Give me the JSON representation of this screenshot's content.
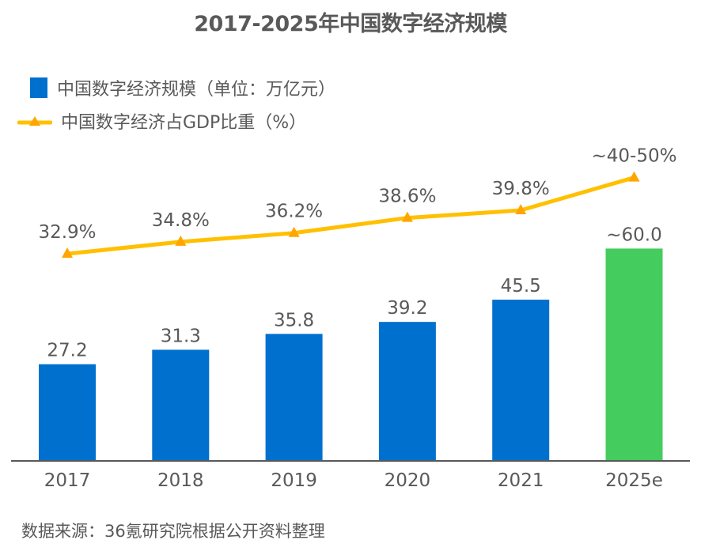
{
  "chart_data": {
    "type": "bar",
    "title": "2017-2025年中国数字经济规模",
    "categories": [
      "2017",
      "2018",
      "2019",
      "2020",
      "2021",
      "2025e"
    ],
    "series": [
      {
        "name": "中国数字经济规模（单位：万亿元）",
        "type": "bar",
        "values": [
          27.2,
          31.3,
          35.8,
          39.2,
          45.5,
          60.0
        ],
        "labels": [
          "27.2",
          "31.3",
          "35.8",
          "39.2",
          "45.5",
          "~60.0"
        ],
        "colors": [
          "#0070CE",
          "#0070CE",
          "#0070CE",
          "#0070CE",
          "#0070CE",
          "#44CC5E"
        ]
      },
      {
        "name": "中国数字经济占GDP比重（%）",
        "type": "line",
        "values": [
          32.9,
          34.8,
          36.2,
          38.6,
          39.8,
          45.0
        ],
        "labels": [
          "32.9%",
          "34.8%",
          "36.2%",
          "38.6%",
          "39.8%",
          "~40-50%"
        ],
        "color": "#FFC000",
        "marker": "triangle",
        "marker_color": "#FFA500"
      }
    ],
    "xlabel": "",
    "ylabel": "",
    "ylim": [
      0,
      65
    ],
    "y2lim": [
      0,
      100
    ],
    "grid": false,
    "legend": "top-left",
    "source": "数据来源：36氪研究院根据公开资料整理"
  }
}
